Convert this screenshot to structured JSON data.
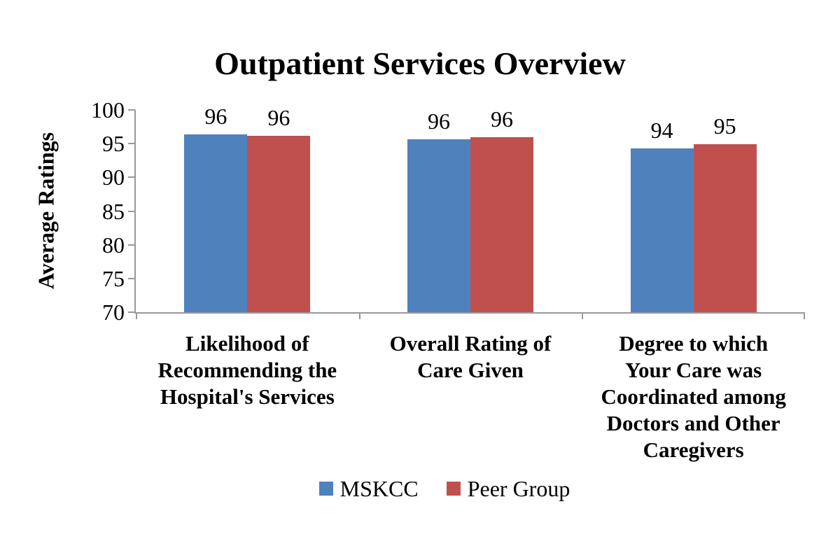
{
  "page": {
    "background_color": "#ffffff",
    "text_color": "#000000",
    "axis_color": "#999999"
  },
  "chart_data": {
    "type": "bar",
    "title": "Outpatient Services Overview",
    "ylabel": "Average Ratings",
    "xlabel": "",
    "ylim": [
      70,
      100
    ],
    "yticks": [
      70,
      75,
      80,
      85,
      90,
      95,
      100
    ],
    "grid": false,
    "legend_position": "bottom",
    "categories": [
      "Likelihood of Recommending the Hospital's Services",
      "Overall Rating of Care Given",
      "Degree to which Your Care was Coordinated among Doctors and Other Caregivers"
    ],
    "category_lines": [
      [
        "Likelihood of",
        "Recommending the",
        "Hospital's Services"
      ],
      [
        "Overall Rating of",
        "Care Given"
      ],
      [
        "Degree to which",
        "Your Care was",
        "Coordinated among",
        "Doctors and Other",
        "Caregivers"
      ]
    ],
    "series": [
      {
        "name": "MSKCC",
        "color": "#4F81BD",
        "values": [
          96,
          96,
          94
        ],
        "labels": [
          "96",
          "96",
          "94"
        ],
        "bar_heights_precise": [
          96.4,
          95.6,
          94.3
        ]
      },
      {
        "name": "Peer Group",
        "color": "#C0504D",
        "values": [
          96,
          96,
          95
        ],
        "labels": [
          "96",
          "96",
          "95"
        ],
        "bar_heights_precise": [
          96.2,
          96.0,
          94.9
        ]
      }
    ]
  }
}
